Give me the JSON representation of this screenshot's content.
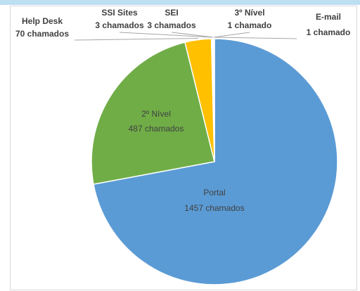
{
  "chart_data": {
    "type": "pie",
    "categories": [
      "Portal",
      "2º Nível",
      "Help Desk",
      "SSI Sites",
      "SEI",
      "3º Nível",
      "E-mail"
    ],
    "values": [
      1457,
      487,
      70,
      3,
      3,
      1,
      1
    ],
    "value_labels": [
      "1457 chamados",
      "487 chamados",
      "70 chamados",
      "3 chamados",
      "3 chamados",
      "1 chamado",
      "1 chamado"
    ],
    "colors": [
      "#5b9bd5",
      "#70ad47",
      "#ffc000",
      "#a5a5a5",
      "#4472c4",
      "#ed7d31",
      "#264478"
    ]
  }
}
